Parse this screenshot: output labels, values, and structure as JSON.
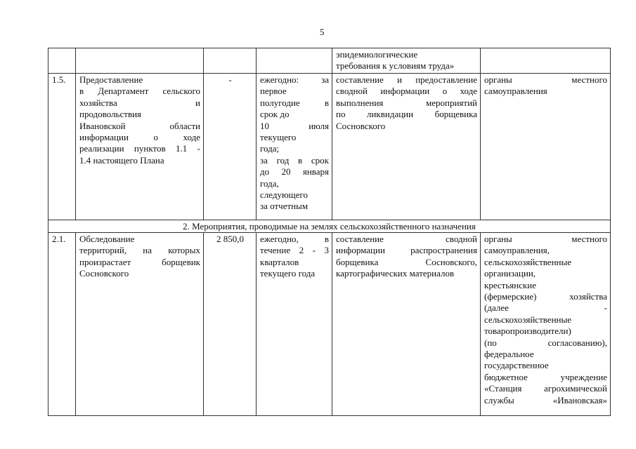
{
  "page_number": "5",
  "rows": [
    {
      "num": "",
      "name": [],
      "amount": "",
      "term": [],
      "result": [
        "эпидемиологические",
        "требования к условиям труда»"
      ],
      "executors": []
    },
    {
      "num": "1.5.",
      "name": [
        "Предоставление",
        "в Департамент сельского",
        "хозяйства и",
        "продовольствия",
        "Ивановской области",
        "информации о ходе",
        "реализации пунктов 1.1 -",
        "1.4 настоящего Плана"
      ],
      "amount": "-",
      "term": [
        "ежегодно: за",
        "первое",
        "полугодие в",
        "срок до",
        "10 июля",
        "текущего",
        "года;",
        "за год в срок",
        "до 20 января",
        "года,",
        "следующего",
        "за отчетным"
      ],
      "result": [
        "составление и предоставление",
        "сводной информации о ходе",
        "выполнения мероприятий",
        "по ликвидации борщевика",
        "Сосновского"
      ],
      "executors": [
        "органы местного",
        "самоуправления"
      ]
    }
  ],
  "section_2_title": "2. Мероприятия, проводимые на землях сельскохозяйственного назначения",
  "row_2_1": {
    "num": "2.1.",
    "name": [
      "Обследование",
      "территорий, на которых",
      "произрастает борщевик",
      "Сосновского"
    ],
    "amount": "2 850,0",
    "term": [
      "ежегодно, в",
      "течение 2 - 3",
      "кварталов",
      "текущего года"
    ],
    "result": [
      "составление сводной",
      "информации распространения",
      "борщевика Сосновского,",
      "картографических материалов"
    ],
    "executors": [
      "органы местного",
      "самоуправления,",
      "сельскохозяйственные",
      "организации,",
      "крестьянские",
      "(фермерские) хозяйства",
      "(далее -",
      "сельскохозяйственные",
      "товаропроизводители)",
      "(по согласованию),",
      "федеральное",
      "государственное",
      "бюджетное учреждение",
      "«Станция агрохимической",
      "службы «Ивановская»"
    ]
  }
}
